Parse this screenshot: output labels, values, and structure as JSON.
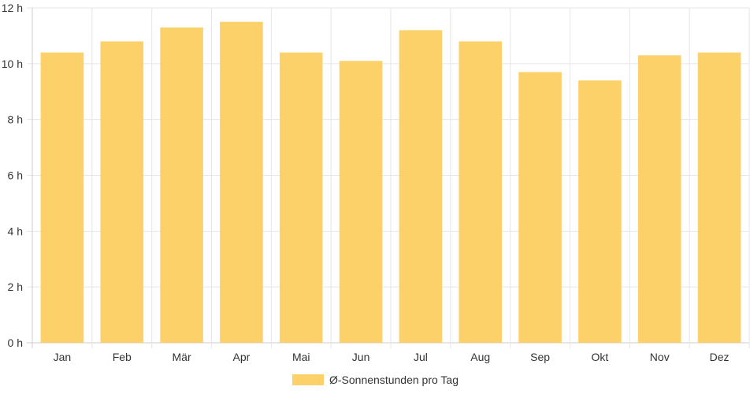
{
  "chart_data": {
    "type": "bar",
    "categories": [
      "Jan",
      "Feb",
      "Mär",
      "Apr",
      "Mai",
      "Jun",
      "Jul",
      "Aug",
      "Sep",
      "Okt",
      "Nov",
      "Dez"
    ],
    "series": [
      {
        "name": "Ø-Sonnenstunden pro Tag",
        "values": [
          10.4,
          10.8,
          11.3,
          11.5,
          10.4,
          10.1,
          11.2,
          10.8,
          9.7,
          9.4,
          10.3,
          10.4
        ],
        "color": "#fdd16a"
      }
    ],
    "y_ticks": [
      "0 h",
      "2 h",
      "4 h",
      "6 h",
      "8 h",
      "10 h",
      "12 h"
    ],
    "ylim": [
      0,
      12
    ],
    "grid": true,
    "legend": "bottom-center",
    "colors": {
      "bar": "#fdd16a",
      "grid": "#e6e6e6",
      "axis": "#cccccc",
      "text": "#333333"
    }
  }
}
